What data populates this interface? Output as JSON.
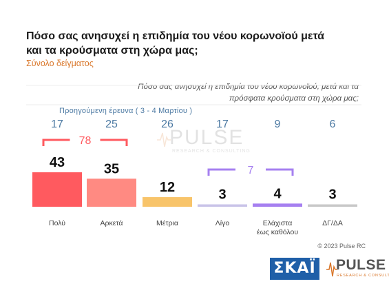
{
  "header": {
    "title": "Πόσο σας ανησυχεί η επιδημία του νέου κορωνοϊού μετά και τα κρούσματα στη χώρα μας;",
    "subtitle": "Σύνολο δείγματος"
  },
  "question_note": "Πόσο σας ανησυχεί η επιδημία του νέου κορωνοϊού, μετά και τα πρόσφατα κρούσματα στη χώρα μας;",
  "previous_survey_label": "Προηγούμενη έρευνα  ( 3 - 4 Μαρτίου )",
  "footnote": "© 2023 Pulse RC",
  "logos": {
    "broadcaster": "ΣΚΑΪ",
    "pollster": "PULSE",
    "pollster_sub": "RESEARCH & CONSULTING"
  },
  "colors": {
    "bar": [
      "#ff5a5f",
      "#ff8a82",
      "#f8c46a",
      "#c9c3e8",
      "#a680f0",
      "#c8c8c8"
    ],
    "bracket_concerned": "#ff5a5f",
    "bracket_not_concerned": "#a680f0",
    "previous_values": "#4d7aa3",
    "subtitle": "#d9772b"
  },
  "chart_data": {
    "type": "bar",
    "categories": [
      "Πολύ",
      "Αρκετά",
      "Μέτρια",
      "Λίγο",
      "Ελάχιστα έως καθόλου",
      "ΔΓ/ΔΑ"
    ],
    "series": [
      {
        "name": "",
        "values": [
          43,
          35,
          12,
          3,
          4,
          3
        ]
      },
      {
        "name": "Προηγούμενη έρευνα  ( 3 - 4 Μαρτίου )",
        "values": [
          17,
          25,
          26,
          17,
          9,
          6
        ]
      }
    ],
    "groups": [
      {
        "value": 78,
        "categories": [
          "Πολύ",
          "Αρκετά"
        ]
      },
      {
        "value": 7,
        "categories": [
          "Λίγο",
          "Ελάχιστα έως καθόλου"
        ]
      }
    ],
    "ylim": [
      0,
      43
    ]
  }
}
